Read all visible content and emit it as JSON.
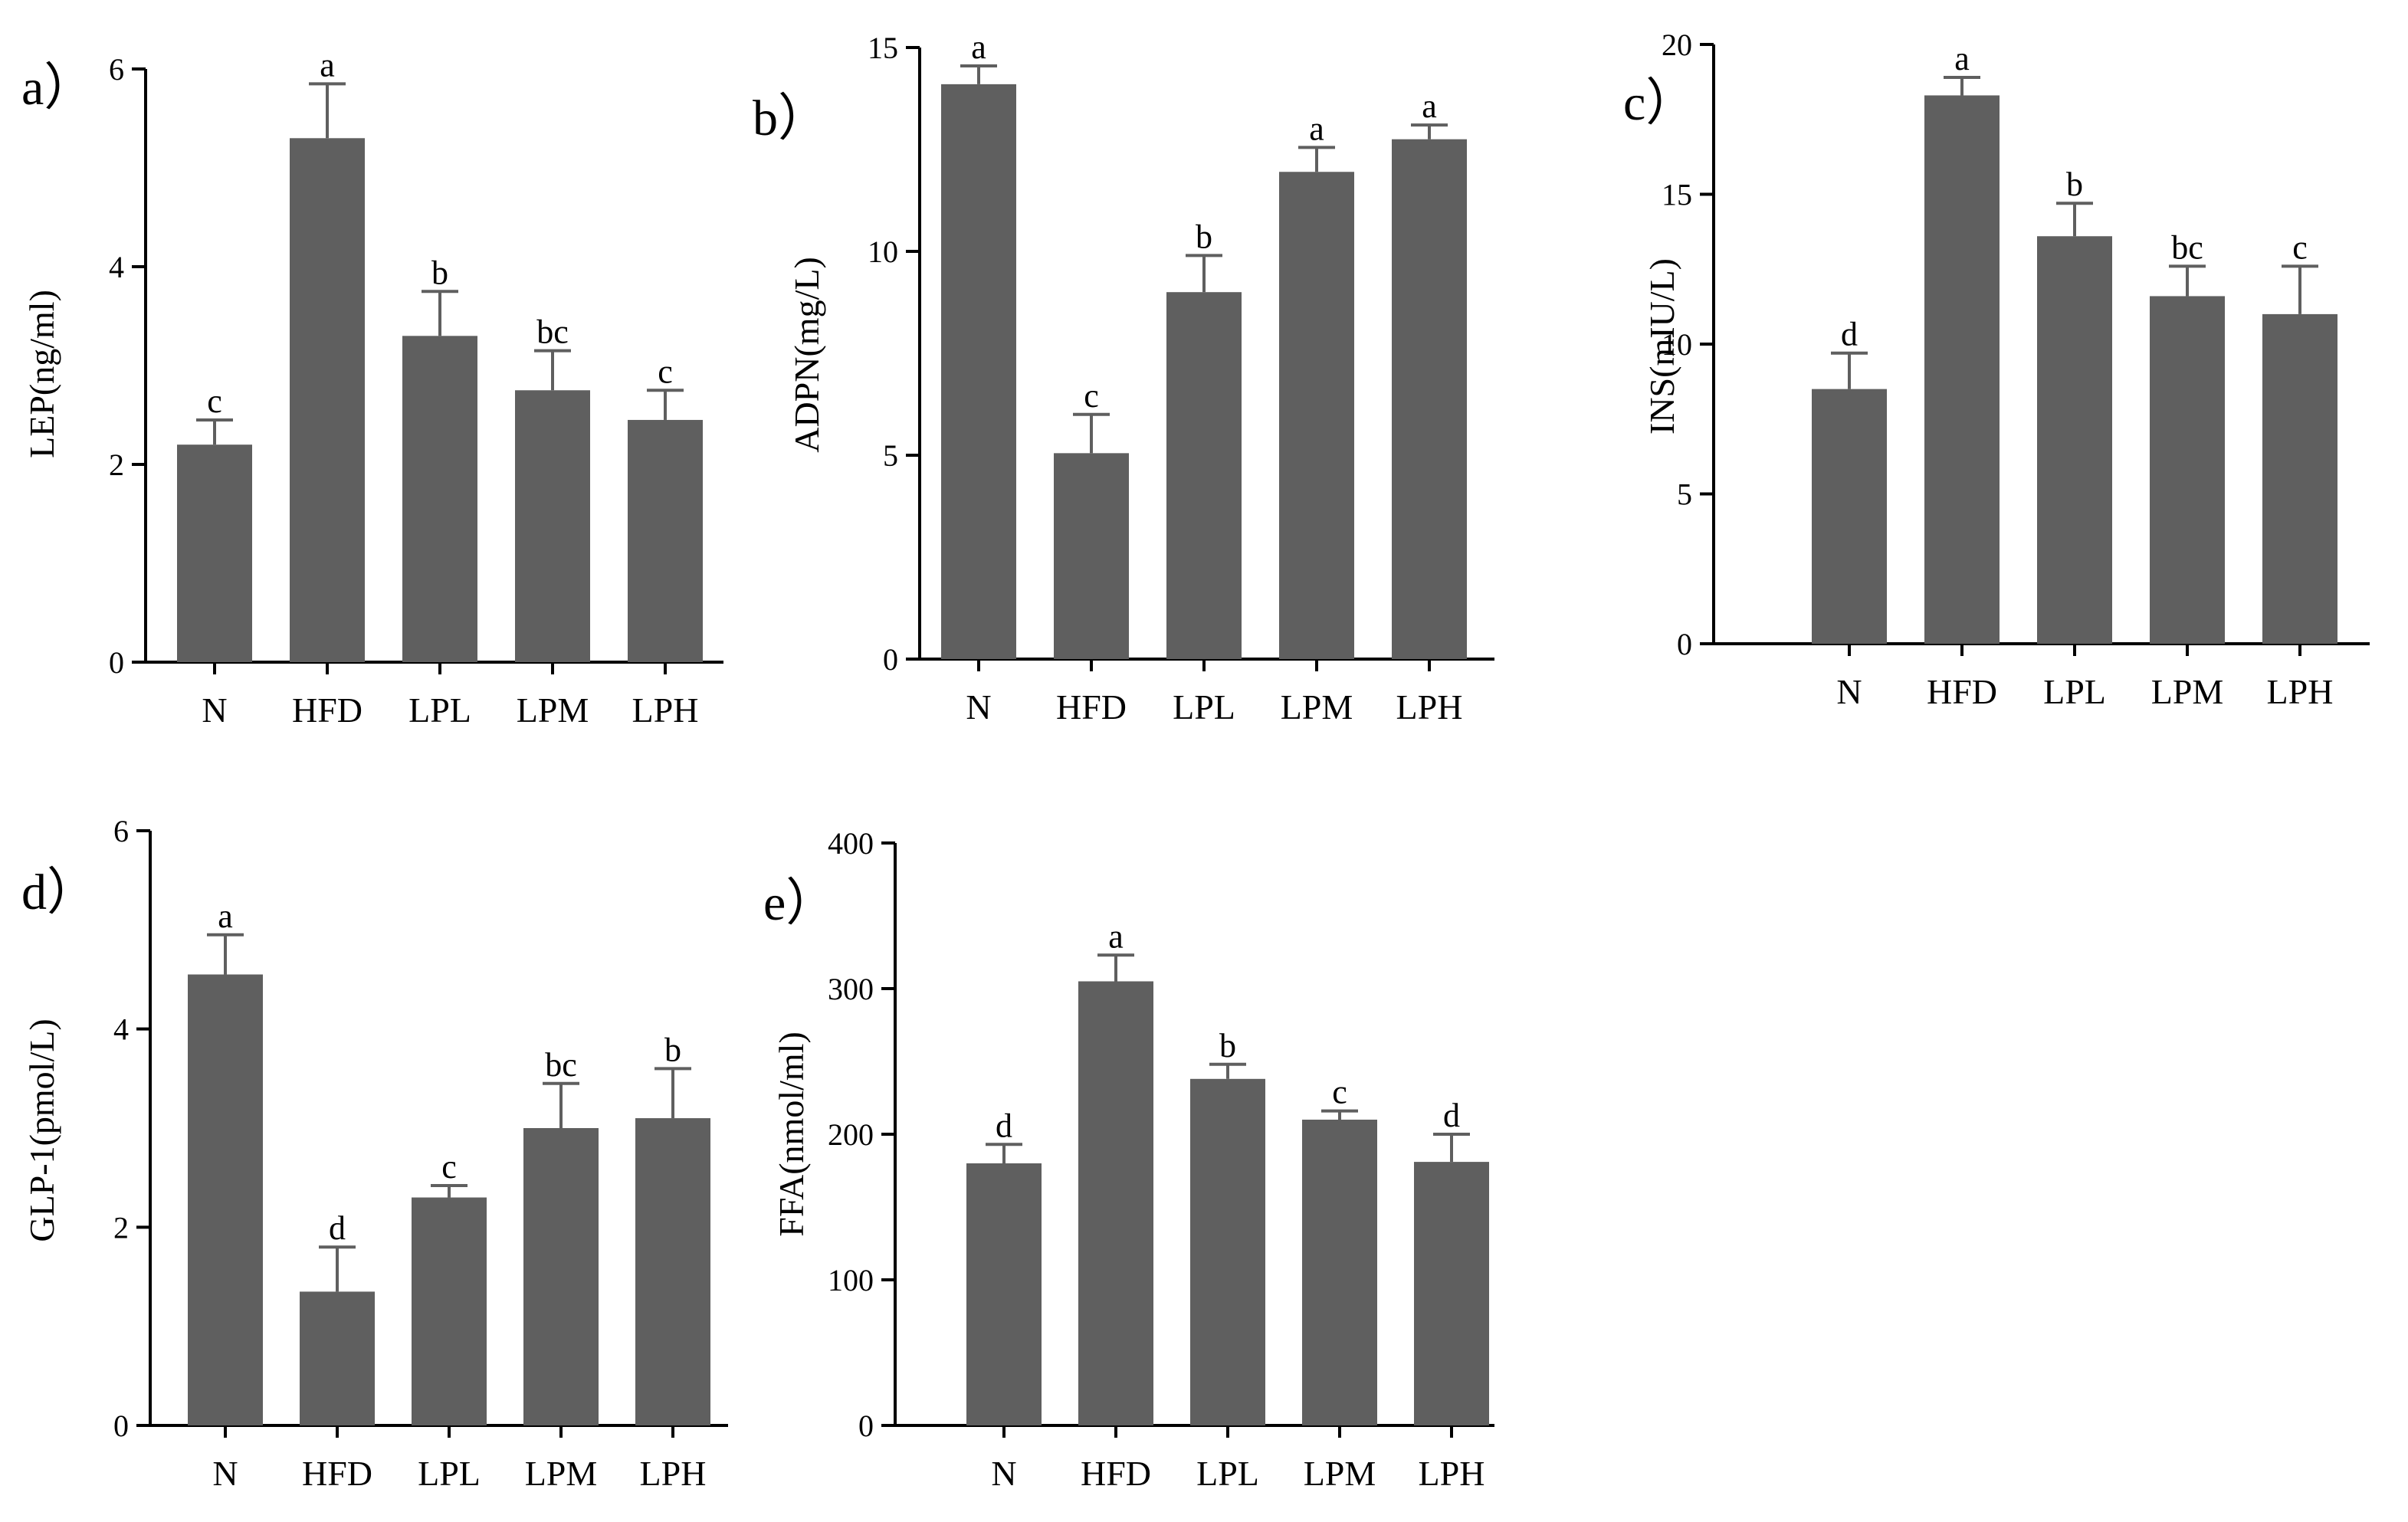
{
  "figure_title": "",
  "colors": {
    "bar": "#5f5f5f",
    "axis": "#000000",
    "error_bar": "#5f5f5f",
    "text": "#000000"
  },
  "chart_data": [
    {
      "panel": "a）",
      "type": "bar",
      "title": "",
      "xlabel": "",
      "ylabel": "LEP(ng/ml)",
      "ylim": [
        0,
        6
      ],
      "yticks": [
        0,
        2,
        4,
        6
      ],
      "categories": [
        "N",
        "HFD",
        "LPL",
        "LPM",
        "LPH"
      ],
      "values": [
        2.2,
        5.3,
        3.3,
        2.75,
        2.45
      ],
      "errors": [
        0.25,
        0.55,
        0.45,
        0.4,
        0.3
      ],
      "significance": [
        "c",
        "a",
        "b",
        "bc",
        "c"
      ]
    },
    {
      "panel": "b）",
      "type": "bar",
      "title": "",
      "xlabel": "",
      "ylabel": "ADPN(mg/L)",
      "ylim": [
        0,
        15
      ],
      "yticks": [
        0,
        5,
        10,
        15
      ],
      "categories": [
        "N",
        "HFD",
        "LPL",
        "LPM",
        "LPH"
      ],
      "values": [
        14.1,
        5.05,
        9.0,
        11.95,
        12.75
      ],
      "errors": [
        0.45,
        0.95,
        0.9,
        0.6,
        0.35
      ],
      "significance": [
        "a",
        "c",
        "b",
        "a",
        "a"
      ]
    },
    {
      "panel": "c）",
      "type": "bar",
      "title": "",
      "xlabel": "",
      "ylabel": "INS(mIU/L)",
      "ylim": [
        0,
        20
      ],
      "yticks": [
        0,
        5,
        10,
        15,
        20
      ],
      "categories": [
        "N",
        "HFD",
        "LPL",
        "LPM",
        "LPH"
      ],
      "values": [
        8.5,
        18.3,
        13.6,
        11.6,
        11.0
      ],
      "errors": [
        1.2,
        0.6,
        1.1,
        1.0,
        1.6
      ],
      "significance": [
        "d",
        "a",
        "b",
        "bc",
        "c"
      ]
    },
    {
      "panel": "d）",
      "type": "bar",
      "title": "",
      "xlabel": "",
      "ylabel": "GLP-1(pmol/L)",
      "ylim": [
        0,
        6
      ],
      "yticks": [
        0,
        2,
        4,
        6
      ],
      "categories": [
        "N",
        "HFD",
        "LPL",
        "LPM",
        "LPH"
      ],
      "values": [
        4.55,
        1.35,
        2.3,
        3.0,
        3.1
      ],
      "errors": [
        0.4,
        0.45,
        0.12,
        0.45,
        0.5
      ],
      "significance": [
        "a",
        "d",
        "c",
        "bc",
        "b"
      ]
    },
    {
      "panel": "e）",
      "type": "bar",
      "title": "",
      "xlabel": "",
      "ylabel": "FFA(nmol/ml)",
      "ylim": [
        0,
        400
      ],
      "yticks": [
        0,
        100,
        200,
        300,
        400
      ],
      "categories": [
        "N",
        "HFD",
        "LPL",
        "LPM",
        "LPH"
      ],
      "values": [
        180,
        305,
        238,
        210,
        181
      ],
      "errors": [
        13,
        18,
        10,
        6,
        19
      ],
      "significance": [
        "d",
        "a",
        "b",
        "c",
        "d"
      ]
    }
  ]
}
